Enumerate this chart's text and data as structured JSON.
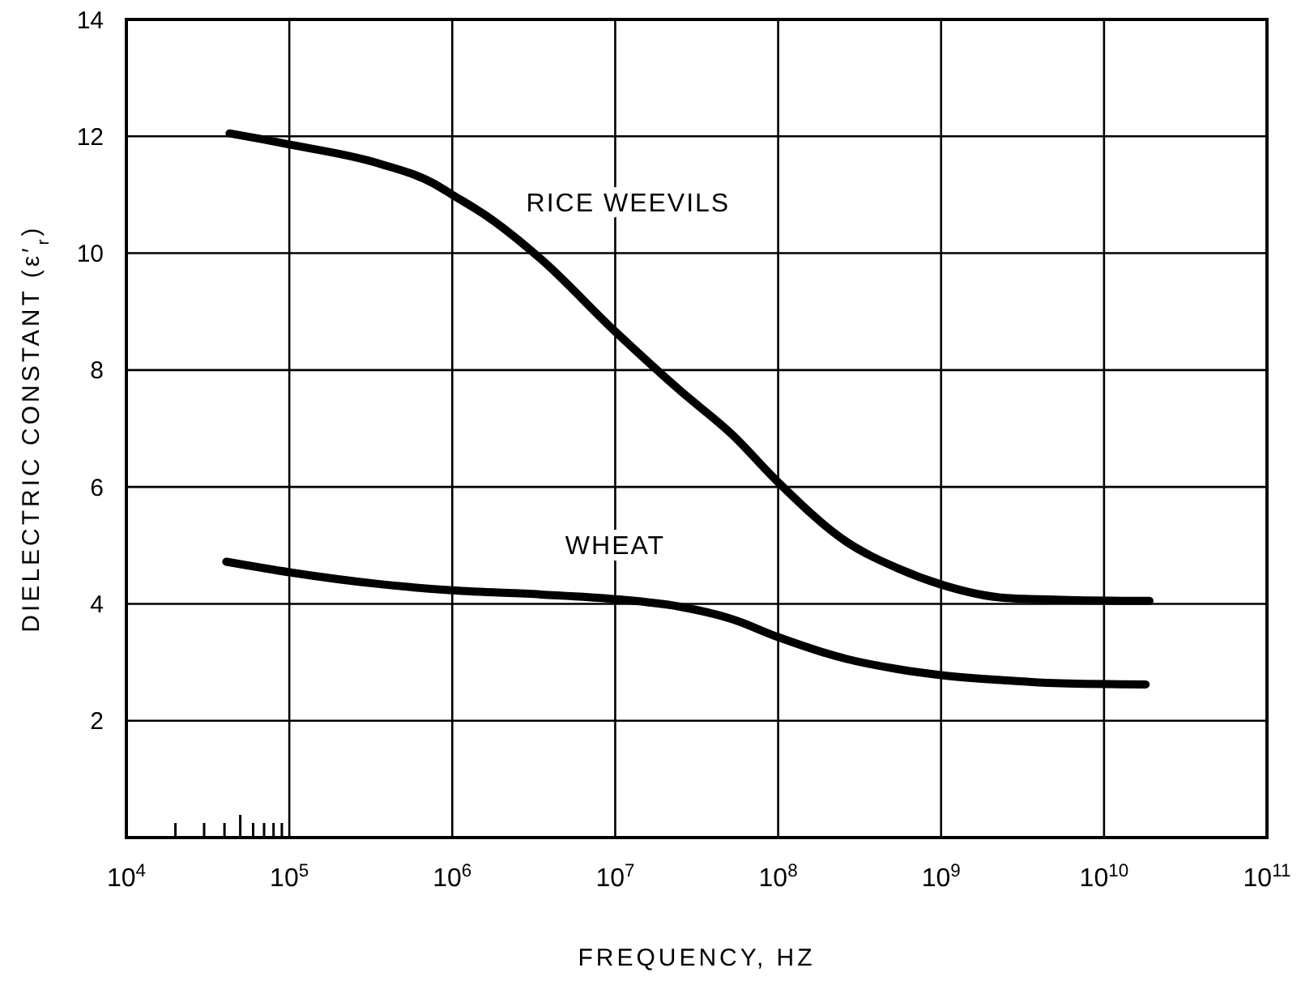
{
  "chart_data": {
    "type": "line",
    "xlabel": "FREQUENCY, HZ",
    "ylabel": "DIELECTRIC CONSTANT (ε′$_{r}$)",
    "log": "x",
    "grid": true,
    "marker": "none",
    "line_style": "solid",
    "xlim": [
      10000,
      100000000000
    ],
    "ylim": [
      0,
      14
    ],
    "xticks": [
      {
        "value": 10000,
        "label": "10$^{4}$"
      },
      {
        "value": 20000,
        "label": null
      },
      {
        "value": 30000,
        "label": null
      },
      {
        "value": 40000,
        "label": null
      },
      {
        "value": 50000,
        "label": null
      },
      {
        "value": 60000,
        "label": null
      },
      {
        "value": 70000,
        "label": null
      },
      {
        "value": 80000,
        "label": null
      },
      {
        "value": 90000,
        "label": null
      },
      {
        "value": 100000,
        "label": "10$^{5}$"
      },
      {
        "value": 1000000,
        "label": "10$^{6}$"
      },
      {
        "value": 10000000,
        "label": "10$^{7}$"
      },
      {
        "value": 100000000,
        "label": "10$^{8}$"
      },
      {
        "value": 1000000000,
        "label": "10$^{9}$"
      },
      {
        "value": 10000000000,
        "label": "10$^{10}$"
      },
      {
        "value": 100000000000,
        "label": "10$^{11}$"
      }
    ],
    "yticks": [
      2,
      4,
      6,
      8,
      10,
      12,
      14
    ],
    "series": [
      {
        "name": "RICE WEEVILS",
        "color": "#000000",
        "x": [
          43000,
          100000,
          350000,
          760000,
          1000000,
          1700000,
          3500000,
          10000000,
          25000000,
          52000000,
          100000000,
          260000000,
          550000000,
          1000000000,
          2500000000,
          5400000000,
          19000000000
        ],
        "values": [
          12.05,
          11.86,
          11.54,
          11.2,
          11.0,
          10.6,
          9.9,
          8.66,
          7.65,
          6.9,
          6.08,
          5.07,
          4.6,
          4.33,
          4.1,
          4.07,
          4.05
        ]
      },
      {
        "name": "WHEAT",
        "color": "#000000",
        "x": [
          41000,
          100000,
          350000,
          1000000,
          3500000,
          10000000,
          25000000,
          52000000,
          100000000,
          260000000,
          550000000,
          1000000000,
          2500000000,
          5400000000,
          18000000000
        ],
        "values": [
          4.72,
          4.54,
          4.34,
          4.23,
          4.16,
          4.08,
          3.95,
          3.74,
          3.43,
          3.06,
          2.88,
          2.78,
          2.69,
          2.64,
          2.62
        ]
      }
    ]
  }
}
